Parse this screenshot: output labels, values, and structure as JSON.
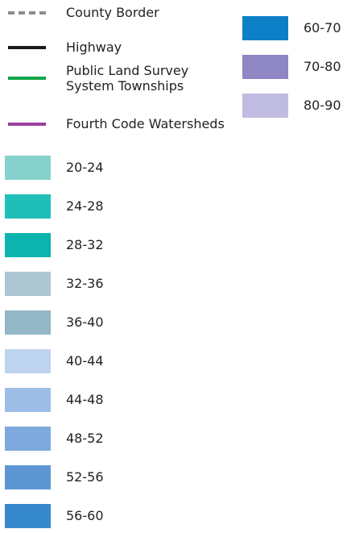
{
  "legend": {
    "lines": [
      {
        "label": [
          "County Border"
        ],
        "color": "#8c8c8c",
        "style": "dashed"
      },
      {
        "label": [
          "Highway"
        ],
        "color": "#1a1a1a",
        "style": "solid"
      },
      {
        "label": [
          "Public Land Survey",
          "System Townships"
        ],
        "color": "#12a54a",
        "style": "solid"
      },
      {
        "label": [
          "Fourth Code Watersheds"
        ],
        "color": "#9b3f9f",
        "style": "solid"
      }
    ],
    "swatches": [
      {
        "label": "20-24",
        "color": "#85d1cc"
      },
      {
        "label": "24-28",
        "color": "#1fbfb8"
      },
      {
        "label": "28-32",
        "color": "#0bb5ad"
      },
      {
        "label": "32-36",
        "color": "#adc6d2"
      },
      {
        "label": "36-40",
        "color": "#92b7c5"
      },
      {
        "label": "40-44",
        "color": "#bed3ee"
      },
      {
        "label": "44-48",
        "color": "#9dbde6"
      },
      {
        "label": "48-52",
        "color": "#7ea9dc"
      },
      {
        "label": "52-56",
        "color": "#5d97d3"
      },
      {
        "label": "56-60",
        "color": "#3688cc"
      },
      {
        "label": "60-70",
        "color": "#0d7fc6"
      },
      {
        "label": "70-80",
        "color": "#8e87c4"
      },
      {
        "label": "80-90",
        "color": "#c0bbe0"
      }
    ]
  }
}
